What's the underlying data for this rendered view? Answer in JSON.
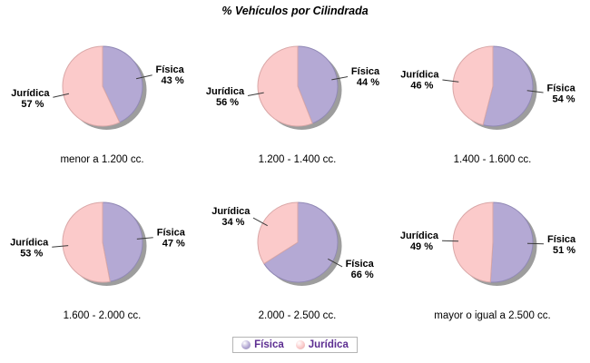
{
  "title": "% Vehículos por Cilindrada",
  "chart_data": {
    "type": "pie",
    "title": "% Vehículos por Cilindrada",
    "layout": "2 rows x 3 columns of pies, shared legend bottom center, drop shadow on each pie",
    "series_names": [
      "Física",
      "Jurídica"
    ],
    "colors": {
      "Física": "#b4a9d4",
      "Jurídica": "#fbcaca"
    },
    "edge_colors": {
      "Física": "#9189b5",
      "Jurídica": "#d9a7a7"
    },
    "shadow_color": "#9d9d9d",
    "charts": [
      {
        "category": "menor a 1.200 cc.",
        "slices": [
          {
            "name": "Física",
            "value": 43,
            "label": "43 %"
          },
          {
            "name": "Jurídica",
            "value": 57,
            "label": "57 %"
          }
        ]
      },
      {
        "category": "1.200 - 1.400 cc.",
        "slices": [
          {
            "name": "Física",
            "value": 44,
            "label": "44 %"
          },
          {
            "name": "Jurídica",
            "value": 56,
            "label": "56 %"
          }
        ]
      },
      {
        "category": "1.400 - 1.600 cc.",
        "slices": [
          {
            "name": "Física",
            "value": 54,
            "label": "54 %"
          },
          {
            "name": "Jurídica",
            "value": 46,
            "label": "46 %"
          }
        ]
      },
      {
        "category": "1.600 - 2.000 cc.",
        "slices": [
          {
            "name": "Física",
            "value": 47,
            "label": "47 %"
          },
          {
            "name": "Jurídica",
            "value": 53,
            "label": "53 %"
          }
        ]
      },
      {
        "category": "2.000 - 2.500 cc.",
        "slices": [
          {
            "name": "Física",
            "value": 66,
            "label": "66 %"
          },
          {
            "name": "Jurídica",
            "value": 34,
            "label": "34 %"
          }
        ]
      },
      {
        "category": "mayor o igual a 2.500 cc.",
        "slices": [
          {
            "name": "Física",
            "value": 51,
            "label": "51 %"
          },
          {
            "name": "Jurídica",
            "value": 49,
            "label": "49 %"
          }
        ]
      }
    ],
    "legend": {
      "position": "bottom-center",
      "text_color": "#5c2d91",
      "entries": [
        {
          "label": "Física",
          "color": "#b4a9d4"
        },
        {
          "label": "Jurídica",
          "color": "#fbcaca"
        }
      ]
    }
  }
}
